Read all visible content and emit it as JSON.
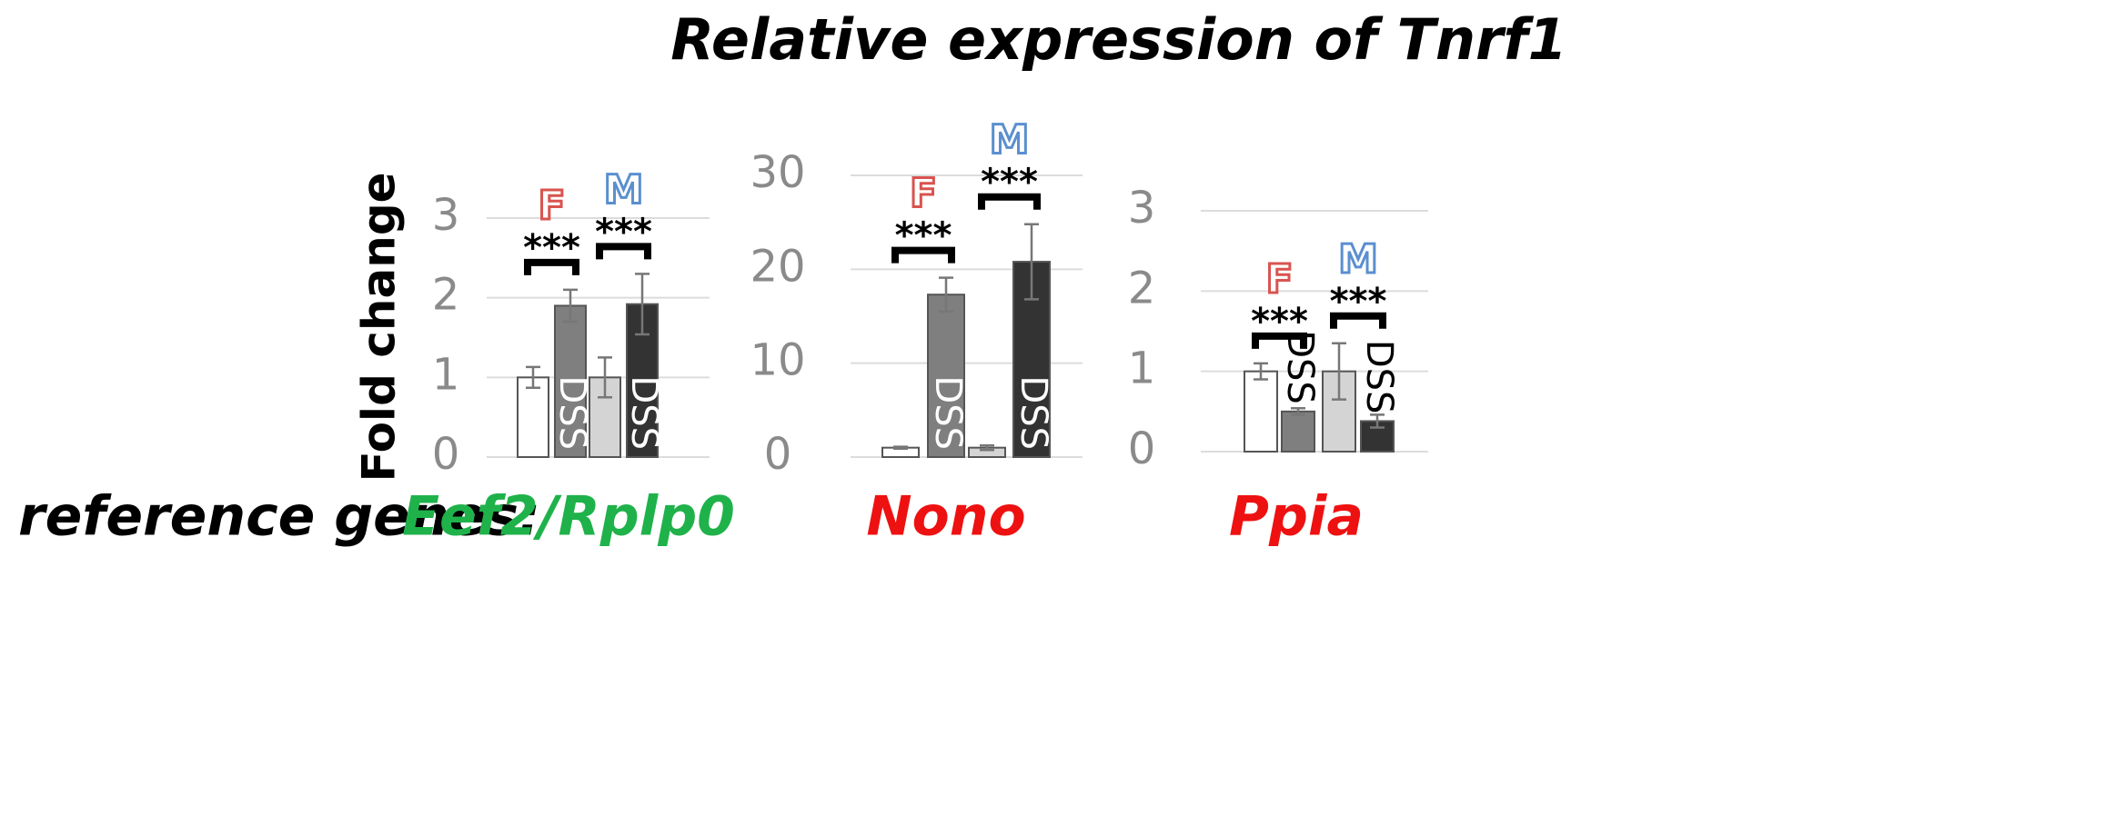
{
  "title": "Relative expression of Tnrf1",
  "y_label": "Fold change",
  "reference_label": "reference genes:",
  "chart_data": [
    {
      "type": "bar",
      "reference_gene": "Eef2/Rplp0",
      "reference_color": "#1fb24a",
      "categories": [
        null,
        "DSS",
        null,
        "DSS"
      ],
      "values": [
        1.0,
        1.9,
        1.0,
        1.92
      ],
      "errors": [
        0.13,
        0.2,
        0.25,
        0.38
      ],
      "colors": [
        "#ffffff",
        "#7f7f7f",
        "#d4d4d4",
        "#333333"
      ],
      "groups": [
        {
          "label": "F",
          "color": "#d9534f",
          "significance": "***"
        },
        {
          "label": "M",
          "color": "#5b8fd0",
          "significance": "***"
        }
      ],
      "ylim": [
        0,
        3
      ],
      "yticks": [
        0,
        1,
        2,
        3
      ],
      "grid": true
    },
    {
      "type": "bar",
      "reference_gene": "Nono",
      "reference_color": "#ee1111",
      "categories": [
        null,
        "DSS",
        null,
        "DSS"
      ],
      "values": [
        1.0,
        17.3,
        1.0,
        20.8
      ],
      "errors": [
        0.1,
        1.8,
        0.25,
        4.0
      ],
      "colors": [
        "#ffffff",
        "#7f7f7f",
        "#d4d4d4",
        "#333333"
      ],
      "groups": [
        {
          "label": "F",
          "color": "#d9534f",
          "significance": "***"
        },
        {
          "label": "M",
          "color": "#5b8fd0",
          "significance": "***"
        }
      ],
      "ylim": [
        0,
        30
      ],
      "yticks": [
        0,
        10,
        20,
        30
      ],
      "grid": true
    },
    {
      "type": "bar",
      "reference_gene": "Ppia",
      "reference_color": "#ee1111",
      "categories": [
        null,
        "DSS",
        null,
        "DSS"
      ],
      "values": [
        1.0,
        0.5,
        1.0,
        0.38
      ],
      "errors": [
        0.1,
        0.04,
        0.35,
        0.08
      ],
      "colors": [
        "#ffffff",
        "#7f7f7f",
        "#d4d4d4",
        "#333333"
      ],
      "groups": [
        {
          "label": "F",
          "color": "#d9534f",
          "significance": "***"
        },
        {
          "label": "M",
          "color": "#5b8fd0",
          "significance": "***"
        }
      ],
      "ylim": [
        0,
        3
      ],
      "yticks": [
        0,
        1,
        2,
        3
      ],
      "grid": true
    }
  ]
}
